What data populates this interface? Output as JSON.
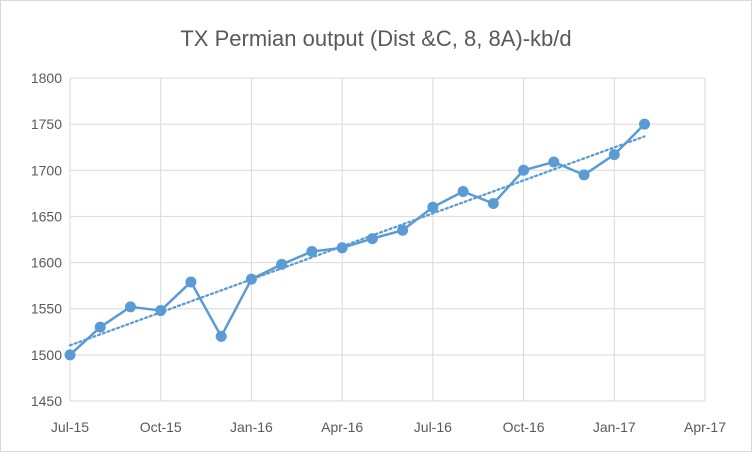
{
  "chart_data": {
    "type": "line",
    "title": "TX Permian output (Dist &C, 8, 8A)-kb/d",
    "xlabel": "",
    "ylabel": "",
    "ylim": [
      1450,
      1800
    ],
    "ytick_labels": [
      "1450",
      "1500",
      "1550",
      "1600",
      "1650",
      "1700",
      "1750",
      "1800"
    ],
    "xtick_labels": [
      "Jul-15",
      "Oct-15",
      "Jan-16",
      "Apr-16",
      "Jul-16",
      "Oct-16",
      "Jan-17",
      "Apr-17"
    ],
    "xlim": [
      "2015-07",
      "2017-04"
    ],
    "grid": "vertical and horizontal major gridlines",
    "legend": "none",
    "colors": {
      "series": "#5b9bd5",
      "grid": "#d9d9d9",
      "text": "#595959"
    },
    "series": [
      {
        "x": [
          "2015-07",
          "2015-08",
          "2015-09",
          "2015-10",
          "2015-11",
          "2015-12",
          "2016-01",
          "2016-02",
          "2016-03",
          "2016-04",
          "2016-05",
          "2016-06",
          "2016-07",
          "2016-08",
          "2016-09",
          "2016-10",
          "2016-11",
          "2016-12",
          "2017-01",
          "2017-02"
        ],
        "values": [
          1500,
          1530,
          1552,
          1548,
          1579,
          1520,
          1582,
          1598,
          1612,
          1616,
          1626,
          1635,
          1660,
          1677,
          1664,
          1700,
          1709,
          1695,
          1717,
          1750
        ],
        "marker": "circle",
        "trendline": "linear (dotted)"
      }
    ]
  }
}
